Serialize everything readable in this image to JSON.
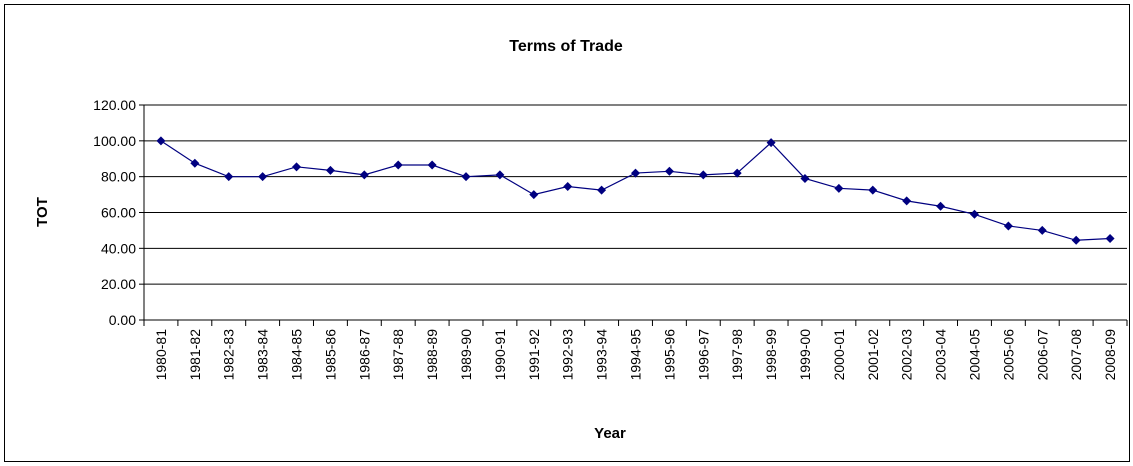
{
  "chart_data": {
    "type": "line",
    "title": "Terms of Trade",
    "x_label": "Year",
    "y_label": "TOT",
    "categories": [
      "1980-81",
      "1981-82",
      "1982-83",
      "1983-84",
      "1984-85",
      "1985-86",
      "1986-87",
      "1987-88",
      "1988-89",
      "1989-90",
      "1990-91",
      "1991-92",
      "1992-93",
      "1993-94",
      "1994-95",
      "1995-96",
      "1996-97",
      "1997-98",
      "1998-99",
      "1999-00",
      "2000-01",
      "2001-02",
      "2002-03",
      "2003-04",
      "2004-05",
      "2005-06",
      "2006-07",
      "2007-08",
      "2008-09"
    ],
    "series": [
      {
        "name": "TOT",
        "color": "#000080",
        "values": [
          100,
          87.5,
          80,
          80,
          85.5,
          83.5,
          81,
          86.5,
          86.5,
          80,
          81,
          70,
          74.5,
          72.5,
          82,
          83,
          81,
          82,
          99,
          79,
          73.5,
          72.5,
          66.5,
          63.5,
          59,
          52.5,
          50,
          44.5,
          45.5
        ]
      }
    ],
    "ylim": [
      0,
      120
    ],
    "yticks": [
      {
        "value": 0,
        "label": "0.00"
      },
      {
        "value": 20,
        "label": "20.00"
      },
      {
        "value": 40,
        "label": "40.00"
      },
      {
        "value": 60,
        "label": "60.00"
      },
      {
        "value": 80,
        "label": "80.00"
      },
      {
        "value": 100,
        "label": "100.00"
      },
      {
        "value": 120,
        "label": "120.00"
      }
    ],
    "grid": true
  }
}
